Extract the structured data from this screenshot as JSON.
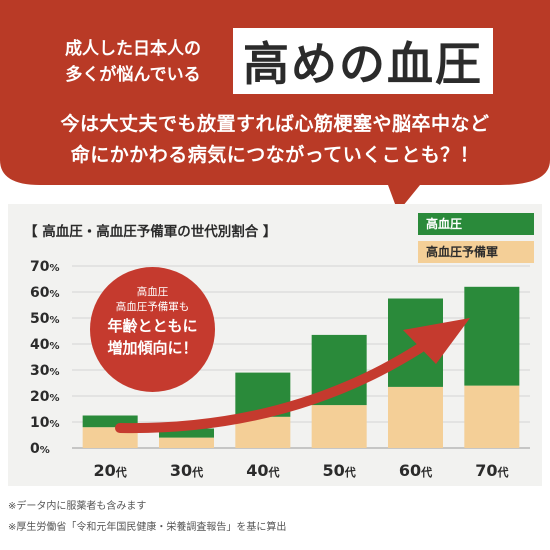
{
  "colors": {
    "banner": "#b93a26",
    "hypertension": "#2a8a3a",
    "pre_hypertension": "#f4cf97",
    "arrow": "#c53a2e"
  },
  "banner": {
    "lead_line1": "成人した日本人の",
    "lead_line2": "多くが悩んでいる",
    "headline": "高めの血圧",
    "sub_line1": "今は大丈夫でも放置すれば心筋梗塞や脳卒中など",
    "sub_line2": "命にかかわる病気につながっていくことも？！"
  },
  "callout": {
    "line1": "高血圧",
    "line2": "高血圧予備軍も",
    "line3": "年齢とともに",
    "line4": "増加傾向に！"
  },
  "notes": {
    "note1": "※データ内に服薬者も含みます",
    "note2": "※厚生労働省「令和元年国民健康・栄養調査報告」を基に算出"
  },
  "chart_data": {
    "type": "bar",
    "stacked": true,
    "title": "【 高血圧・高血圧予備軍の世代別割合 】",
    "categories": [
      "20代",
      "30代",
      "40代",
      "50代",
      "60代",
      "70代"
    ],
    "category_labels": [
      {
        "num": "20",
        "unit": "代"
      },
      {
        "num": "30",
        "unit": "代"
      },
      {
        "num": "40",
        "unit": "代"
      },
      {
        "num": "50",
        "unit": "代"
      },
      {
        "num": "60",
        "unit": "代"
      },
      {
        "num": "70",
        "unit": "代"
      }
    ],
    "series": [
      {
        "name": "高血圧予備軍",
        "values": [
          8,
          4,
          12,
          16.5,
          23.5,
          24
        ]
      },
      {
        "name": "高血圧",
        "values": [
          4.5,
          3.5,
          17,
          27,
          34,
          38
        ]
      }
    ],
    "legend": [
      "高血圧",
      "高血圧予備軍"
    ],
    "legend_position": "top-right",
    "ylim": [
      0,
      70
    ],
    "yticks": [
      0,
      10,
      20,
      30,
      40,
      50,
      60,
      70
    ],
    "ytick_unit": "%",
    "grid": true
  }
}
